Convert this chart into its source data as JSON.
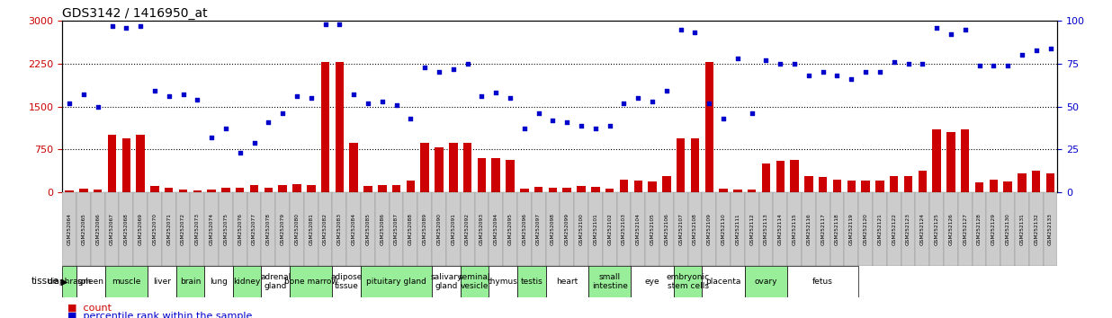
{
  "title": "GDS3142 / 1416950_at",
  "samples": [
    "GSM252064",
    "GSM252065",
    "GSM252066",
    "GSM252067",
    "GSM252068",
    "GSM252069",
    "GSM252070",
    "GSM252071",
    "GSM252072",
    "GSM252073",
    "GSM252074",
    "GSM252075",
    "GSM252076",
    "GSM252077",
    "GSM252078",
    "GSM252079",
    "GSM252080",
    "GSM252081",
    "GSM252082",
    "GSM252083",
    "GSM252084",
    "GSM252085",
    "GSM252086",
    "GSM252087",
    "GSM252088",
    "GSM252089",
    "GSM252090",
    "GSM252091",
    "GSM252092",
    "GSM252093",
    "GSM252094",
    "GSM252095",
    "GSM252096",
    "GSM252097",
    "GSM252098",
    "GSM252099",
    "GSM252100",
    "GSM252101",
    "GSM252102",
    "GSM252103",
    "GSM252104",
    "GSM252105",
    "GSM252106",
    "GSM252107",
    "GSM252108",
    "GSM252109",
    "GSM252110",
    "GSM252111",
    "GSM252112",
    "GSM252113",
    "GSM252114",
    "GSM252115",
    "GSM252116",
    "GSM252117",
    "GSM252118",
    "GSM252119",
    "GSM252120",
    "GSM252121",
    "GSM252122",
    "GSM252123",
    "GSM252124",
    "GSM252125",
    "GSM252126",
    "GSM252127",
    "GSM252128",
    "GSM252129",
    "GSM252130",
    "GSM252131",
    "GSM252132",
    "GSM252133"
  ],
  "count": [
    40,
    60,
    50,
    1000,
    950,
    1000,
    120,
    80,
    50,
    40,
    50,
    80,
    80,
    130,
    80,
    130,
    150,
    130,
    2280,
    2280,
    870,
    120,
    130,
    130,
    200,
    870,
    780,
    870,
    870,
    600,
    600,
    560,
    60,
    90,
    80,
    80,
    110,
    90,
    70,
    220,
    200,
    190,
    290,
    950,
    950,
    2280,
    60,
    50,
    50,
    500,
    550,
    560,
    280,
    270,
    220,
    210,
    200,
    200,
    290,
    280,
    380,
    1100,
    1050,
    1100,
    170,
    230,
    190,
    340,
    380,
    330
  ],
  "percentile": [
    52,
    57,
    50,
    97,
    96,
    97,
    59,
    56,
    57,
    54,
    32,
    37,
    23,
    29,
    41,
    46,
    56,
    55,
    98,
    98,
    57,
    52,
    53,
    51,
    43,
    73,
    70,
    72,
    75,
    56,
    58,
    55,
    37,
    46,
    42,
    41,
    39,
    37,
    39,
    52,
    55,
    53,
    59,
    95,
    93,
    52,
    43,
    78,
    46,
    77,
    75,
    75,
    68,
    70,
    68,
    66,
    70,
    70,
    76,
    75,
    75,
    96,
    92,
    95,
    74,
    74,
    74,
    80,
    83,
    84
  ],
  "tissue_groups": [
    {
      "name": "diaphragm",
      "start": 0,
      "end": 0
    },
    {
      "name": "spleen",
      "start": 1,
      "end": 2
    },
    {
      "name": "muscle",
      "start": 3,
      "end": 5
    },
    {
      "name": "liver",
      "start": 6,
      "end": 7
    },
    {
      "name": "brain",
      "start": 8,
      "end": 9
    },
    {
      "name": "lung",
      "start": 10,
      "end": 11
    },
    {
      "name": "kidney",
      "start": 12,
      "end": 13
    },
    {
      "name": "adrenal\ngland",
      "start": 14,
      "end": 15
    },
    {
      "name": "bone marrow",
      "start": 16,
      "end": 18
    },
    {
      "name": "adipose\ntissue",
      "start": 19,
      "end": 20
    },
    {
      "name": "pituitary gland",
      "start": 21,
      "end": 25
    },
    {
      "name": "salivary\ngland",
      "start": 26,
      "end": 27
    },
    {
      "name": "seminal\nvesicle",
      "start": 28,
      "end": 29
    },
    {
      "name": "thymus",
      "start": 30,
      "end": 31
    },
    {
      "name": "testis",
      "start": 32,
      "end": 33
    },
    {
      "name": "heart",
      "start": 34,
      "end": 36
    },
    {
      "name": "small\nintestine",
      "start": 37,
      "end": 39
    },
    {
      "name": "eye",
      "start": 40,
      "end": 42
    },
    {
      "name": "embryonic\nstem cells",
      "start": 43,
      "end": 44
    },
    {
      "name": "placenta",
      "start": 45,
      "end": 47
    },
    {
      "name": "ovary",
      "start": 48,
      "end": 50
    },
    {
      "name": "fetus",
      "start": 51,
      "end": 55
    }
  ],
  "ylim_left": [
    0,
    3000
  ],
  "ylim_right": [
    0,
    100
  ],
  "yticks_left": [
    0,
    750,
    1500,
    2250,
    3000
  ],
  "yticks_right": [
    0,
    25,
    50,
    75,
    100
  ],
  "bar_color": "#cc0000",
  "dot_color": "#0000cc",
  "bg_color": "#ffffff",
  "tick_color_left": "#cc0000",
  "tick_color_right": "#0000cc",
  "title_color": "#000000",
  "tissue_bg_even": "#99ee99",
  "tissue_bg_odd": "#ffffff",
  "sample_bg": "#cccccc",
  "hline_color": "#000000",
  "hline_style": "dotted",
  "legend_count_color": "#cc0000",
  "legend_pct_color": "#0000cc"
}
